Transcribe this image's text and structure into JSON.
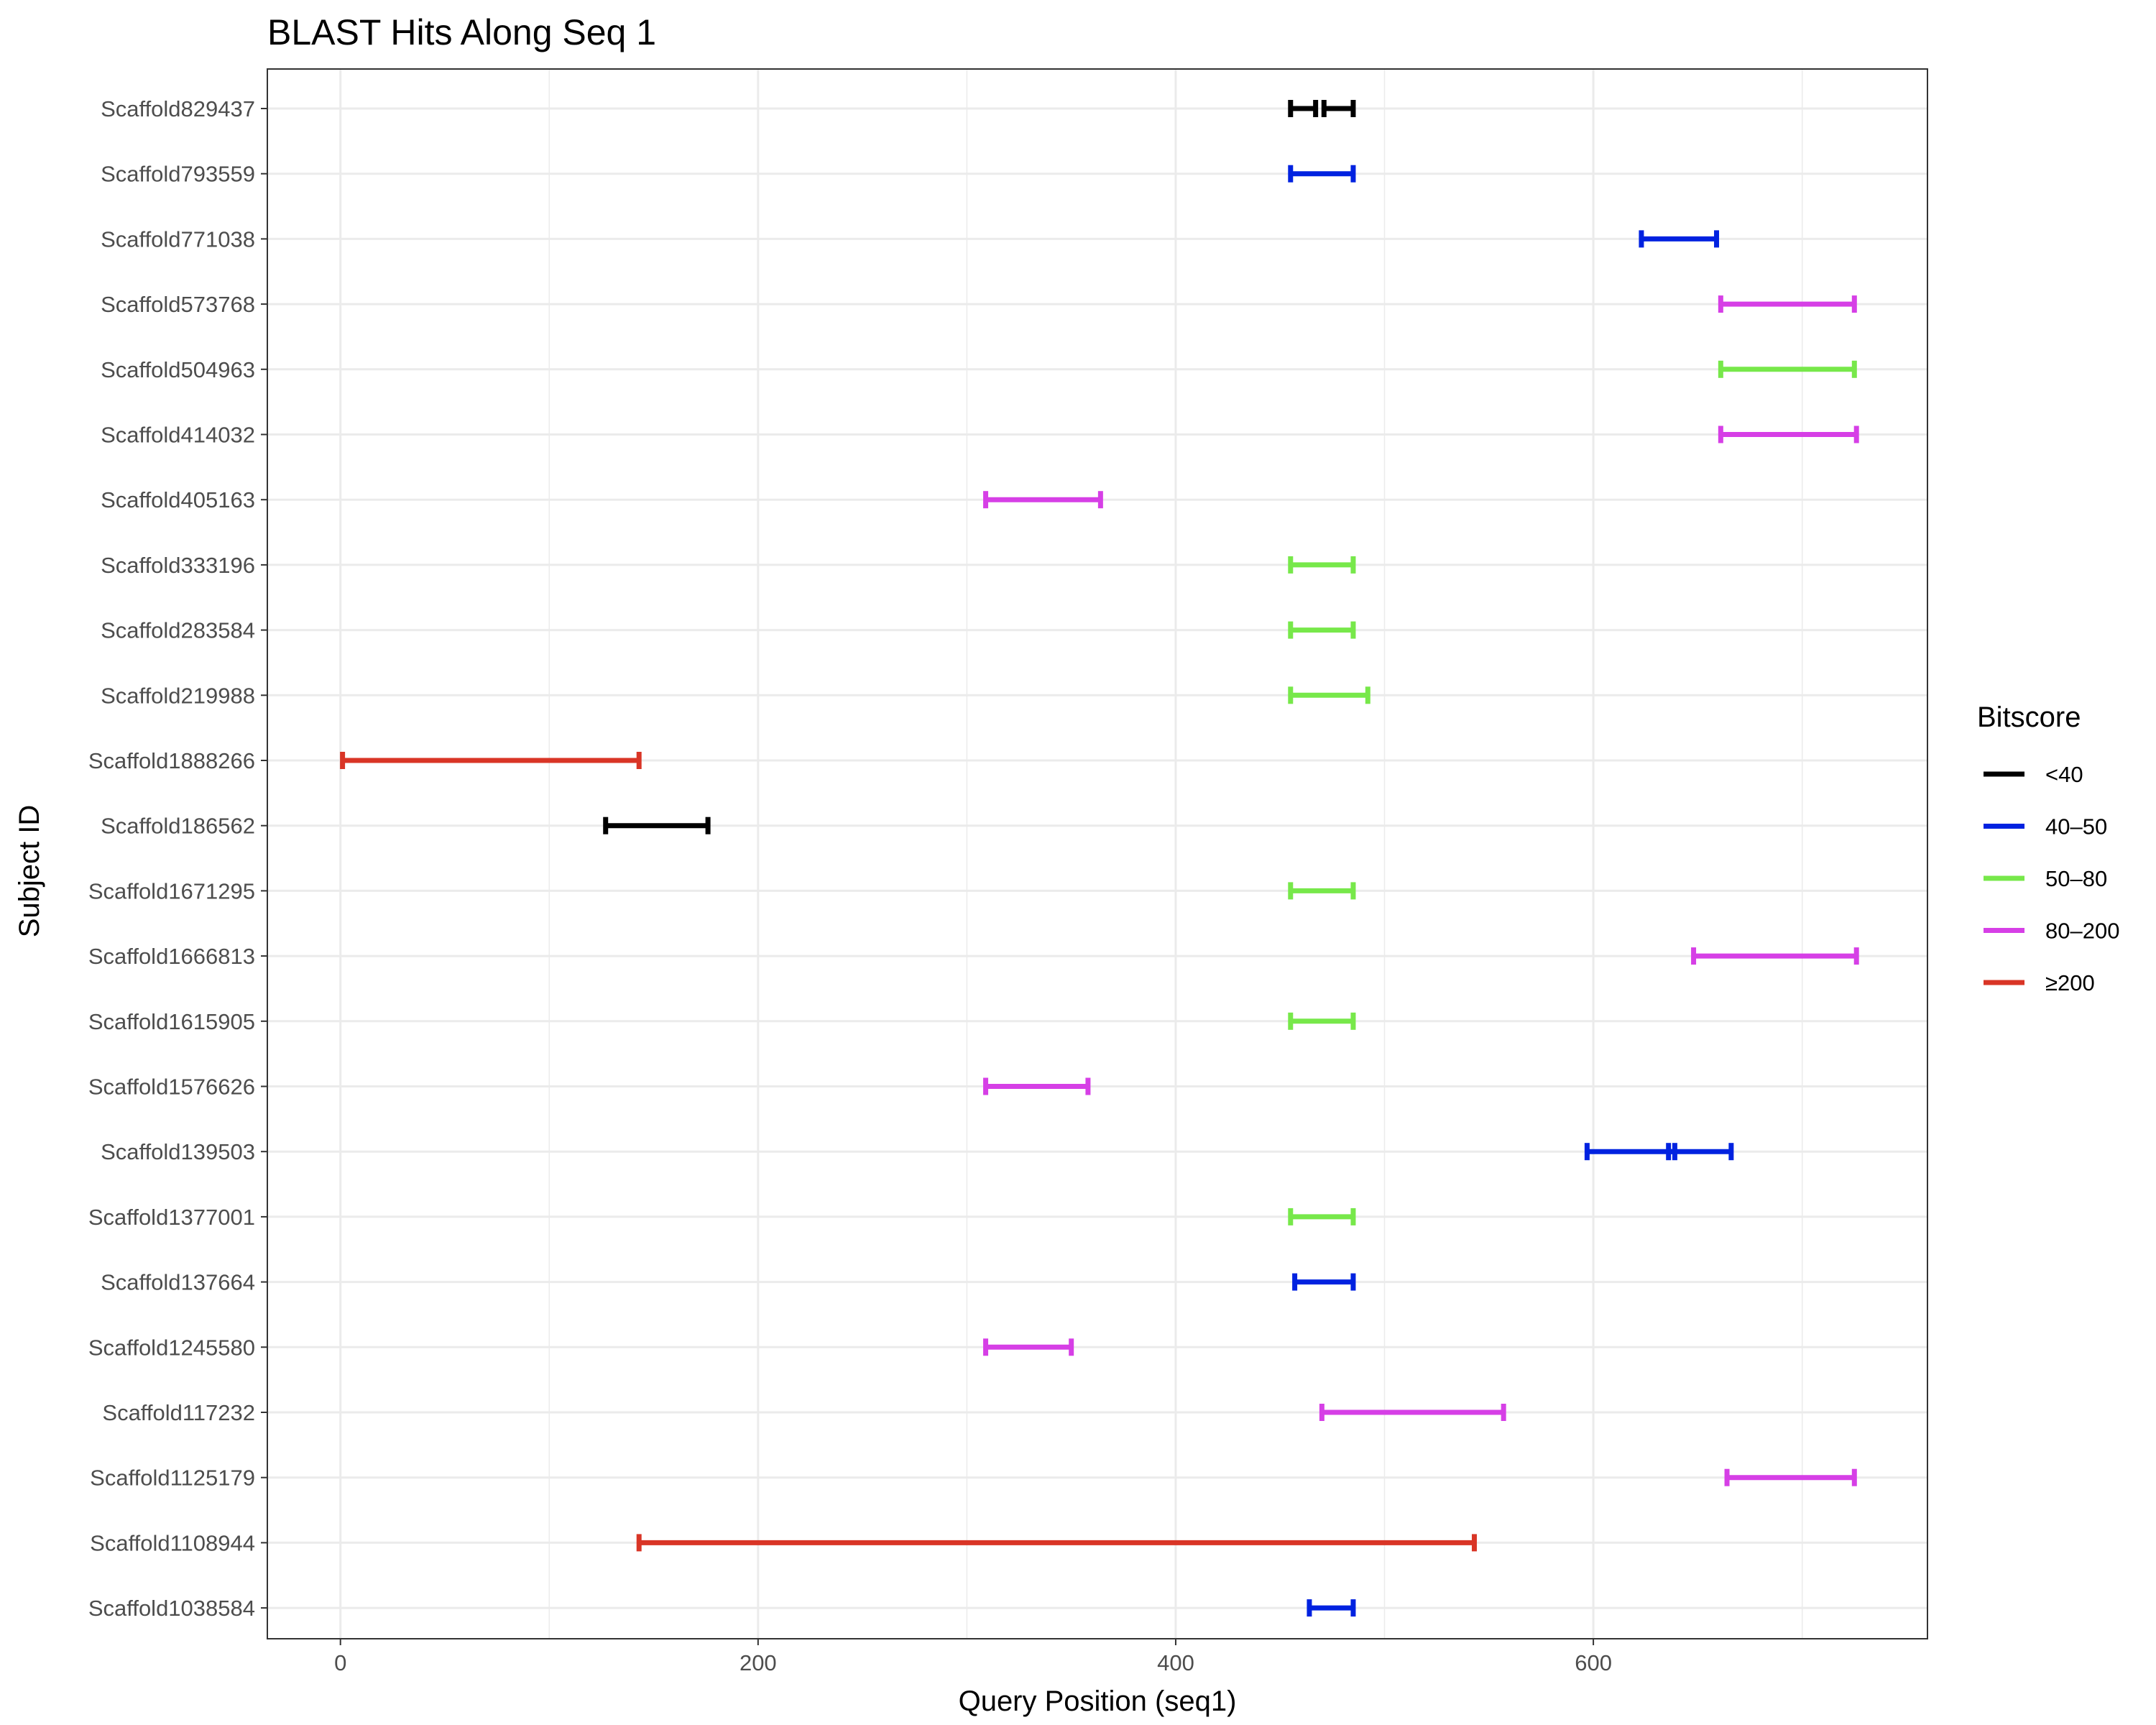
{
  "chart_data": {
    "type": "range",
    "title": "BLAST Hits Along Seq 1",
    "xlabel": "Query Position (seq1)",
    "ylabel": "Subject ID",
    "xlim": [
      -35,
      760
    ],
    "x_ticks": [
      0,
      200,
      400,
      600
    ],
    "grid": true,
    "legend": {
      "title": "Bitscore",
      "position": "right",
      "items": [
        {
          "label": "<40",
          "color": "#000000"
        },
        {
          "label": "40–50",
          "color": "#0022e0"
        },
        {
          "label": "50–80",
          "color": "#77e84a"
        },
        {
          "label": "80–200",
          "color": "#d63fe6"
        },
        {
          "label": "≥200",
          "color": "#d93526"
        }
      ]
    },
    "categories": [
      "Scaffold829437",
      "Scaffold793559",
      "Scaffold771038",
      "Scaffold573768",
      "Scaffold504963",
      "Scaffold414032",
      "Scaffold405163",
      "Scaffold333196",
      "Scaffold283584",
      "Scaffold219988",
      "Scaffold1888266",
      "Scaffold186562",
      "Scaffold1671295",
      "Scaffold1666813",
      "Scaffold1615905",
      "Scaffold1576626",
      "Scaffold139503",
      "Scaffold1377001",
      "Scaffold137664",
      "Scaffold1245580",
      "Scaffold117232",
      "Scaffold1125179",
      "Scaffold1108944",
      "Scaffold1038584"
    ],
    "hits": [
      {
        "subject": "Scaffold829437",
        "start": 455,
        "end": 467,
        "bitscore_bin": "<40"
      },
      {
        "subject": "Scaffold829437",
        "start": 471,
        "end": 485,
        "bitscore_bin": "<40"
      },
      {
        "subject": "Scaffold793559",
        "start": 455,
        "end": 485,
        "bitscore_bin": "40–50"
      },
      {
        "subject": "Scaffold771038",
        "start": 623,
        "end": 659,
        "bitscore_bin": "40–50"
      },
      {
        "subject": "Scaffold573768",
        "start": 661,
        "end": 725,
        "bitscore_bin": "80–200"
      },
      {
        "subject": "Scaffold504963",
        "start": 661,
        "end": 725,
        "bitscore_bin": "50–80"
      },
      {
        "subject": "Scaffold414032",
        "start": 661,
        "end": 726,
        "bitscore_bin": "80–200"
      },
      {
        "subject": "Scaffold405163",
        "start": 309,
        "end": 364,
        "bitscore_bin": "80–200"
      },
      {
        "subject": "Scaffold333196",
        "start": 455,
        "end": 485,
        "bitscore_bin": "50–80"
      },
      {
        "subject": "Scaffold283584",
        "start": 455,
        "end": 485,
        "bitscore_bin": "50–80"
      },
      {
        "subject": "Scaffold219988",
        "start": 455,
        "end": 492,
        "bitscore_bin": "50–80"
      },
      {
        "subject": "Scaffold1888266",
        "start": 1,
        "end": 143,
        "bitscore_bin": "≥200"
      },
      {
        "subject": "Scaffold186562",
        "start": 127,
        "end": 176,
        "bitscore_bin": "<40"
      },
      {
        "subject": "Scaffold1671295",
        "start": 455,
        "end": 485,
        "bitscore_bin": "50–80"
      },
      {
        "subject": "Scaffold1666813",
        "start": 648,
        "end": 726,
        "bitscore_bin": "80–200"
      },
      {
        "subject": "Scaffold1615905",
        "start": 455,
        "end": 485,
        "bitscore_bin": "50–80"
      },
      {
        "subject": "Scaffold1576626",
        "start": 309,
        "end": 358,
        "bitscore_bin": "80–200"
      },
      {
        "subject": "Scaffold139503",
        "start": 597,
        "end": 639,
        "bitscore_bin": "40–50"
      },
      {
        "subject": "Scaffold139503",
        "start": 636,
        "end": 666,
        "bitscore_bin": "40–50"
      },
      {
        "subject": "Scaffold1377001",
        "start": 455,
        "end": 485,
        "bitscore_bin": "50–80"
      },
      {
        "subject": "Scaffold137664",
        "start": 457,
        "end": 485,
        "bitscore_bin": "40–50"
      },
      {
        "subject": "Scaffold1245580",
        "start": 309,
        "end": 350,
        "bitscore_bin": "80–200"
      },
      {
        "subject": "Scaffold117232",
        "start": 470,
        "end": 557,
        "bitscore_bin": "80–200"
      },
      {
        "subject": "Scaffold1125179",
        "start": 664,
        "end": 725,
        "bitscore_bin": "80–200"
      },
      {
        "subject": "Scaffold1108944",
        "start": 143,
        "end": 543,
        "bitscore_bin": "≥200"
      },
      {
        "subject": "Scaffold1038584",
        "start": 464,
        "end": 485,
        "bitscore_bin": "40–50"
      }
    ]
  }
}
